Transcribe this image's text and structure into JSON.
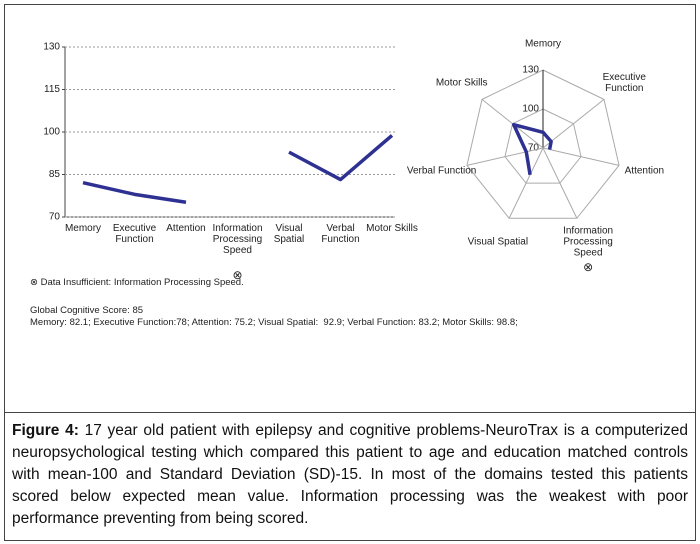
{
  "chart_data": [
    {
      "type": "line",
      "categories": [
        "Memory",
        "Executive Function",
        "Attention",
        "Information Processing Speed",
        "Visual Spatial",
        "Verbal Function",
        "Motor Skills"
      ],
      "values": [
        82.1,
        78,
        75.2,
        null,
        92.9,
        83.2,
        98.8
      ],
      "color": "#2e3192",
      "ylim": [
        70,
        130
      ],
      "yticks": [
        70,
        85,
        100,
        115,
        130
      ],
      "grid": true,
      "annotation": "⊗",
      "annotation_category": 3
    },
    {
      "type": "radar",
      "categories": [
        "Memory",
        "Executive Function",
        "Attention",
        "Information Processing Speed",
        "Visual Spatial",
        "Verbal Function",
        "Motor Skills"
      ],
      "values": [
        82.1,
        78,
        75.2,
        null,
        92.9,
        83.2,
        98.8
      ],
      "color": "#2e3192",
      "rlim": [
        70,
        130
      ],
      "rticks": [
        70,
        100,
        130
      ],
      "annotation": "⊗",
      "annotation_category": 3
    }
  ],
  "footnote": "⊗ Data Insufficient: Information Processing Speed.",
  "global_score": "Global Cognitive Score: 85",
  "scores_line": "Memory: 82.1; Executive Function:78; Attention: 75.2; Visual Spatial:  92.9; Verbal Function: 83.2; Motor Skills: 98.8;",
  "caption": {
    "label": "Figure 4:",
    "text": " 17 year old patient with epilepsy and cognitive problems-NeuroTrax is a computerized neuropsychological testing which compared this patient to age and education matched controls with mean-100 and Standard Deviation (SD)-15. In most of the domains tested this patients scored below expected mean value. Information processing was the weakest with poor performance preventing from being scored."
  }
}
